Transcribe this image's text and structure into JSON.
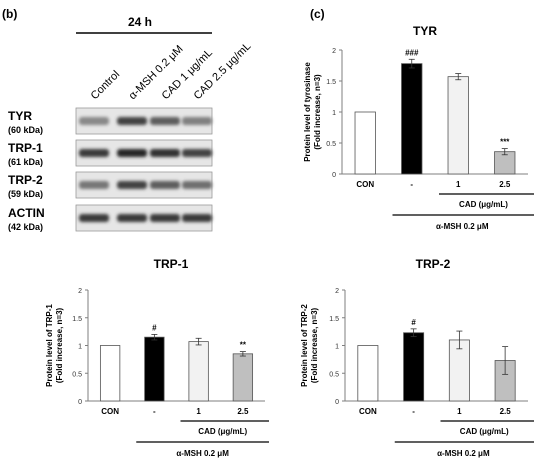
{
  "panels": {
    "b": "(b)",
    "c": "(c)"
  },
  "blot": {
    "time_label": "24 h",
    "lanes": [
      "Control",
      "α-MSH 0.2 μM",
      "CAD 1 μg/mL",
      "CAD 2.5 μg/mL"
    ],
    "rows": [
      {
        "name": "TYR",
        "mw": "(60 kDa)",
        "intensity": [
          0.45,
          0.85,
          0.7,
          0.5
        ]
      },
      {
        "name": "TRP-1",
        "mw": "(61 kDa)",
        "intensity": [
          0.9,
          1.0,
          0.95,
          0.85
        ]
      },
      {
        "name": "TRP-2",
        "mw": "(59 kDa)",
        "intensity": [
          0.55,
          0.85,
          0.7,
          0.6
        ]
      },
      {
        "name": "ACTIN",
        "mw": "(42 kDa)",
        "intensity": [
          0.9,
          0.9,
          0.9,
          0.9
        ]
      }
    ]
  },
  "chart_data": [
    {
      "type": "bar",
      "title": "TYR",
      "ylabel_line1": "Protein level of tyrosinase",
      "ylabel_line2": "(Fold increase, n=3)",
      "ylim": [
        0,
        2
      ],
      "yticks": [
        "0",
        "0.5",
        "1",
        "1.5",
        "2"
      ],
      "categories": [
        "CON",
        "-",
        "1",
        "2.5"
      ],
      "values": [
        1.0,
        1.78,
        1.57,
        0.36
      ],
      "errors": [
        0.0,
        0.07,
        0.05,
        0.05
      ],
      "bar_colors": [
        "#ffffff",
        "#000000",
        "#f2f2f2",
        "#bfbfbf"
      ],
      "significance": [
        "",
        "###",
        "",
        "***"
      ],
      "cad_label": "CAD (μg/mL)",
      "msh_label": "α-MSH 0.2 μM"
    },
    {
      "type": "bar",
      "title": "TRP-1",
      "ylabel_line1": "Protein level of TRP-1",
      "ylabel_line2": "(Fold increase, n=3)",
      "ylim": [
        0,
        2
      ],
      "yticks": [
        "0",
        "0.5",
        "1",
        "1.5",
        "2"
      ],
      "categories": [
        "CON",
        "-",
        "1",
        "2.5"
      ],
      "values": [
        1.0,
        1.15,
        1.07,
        0.85
      ],
      "errors": [
        0.0,
        0.05,
        0.06,
        0.04
      ],
      "bar_colors": [
        "#ffffff",
        "#000000",
        "#f2f2f2",
        "#bfbfbf"
      ],
      "significance": [
        "",
        "#",
        "",
        "**"
      ],
      "cad_label": "CAD (μg/mL)",
      "msh_label": "α-MSH 0.2 μM"
    },
    {
      "type": "bar",
      "title": "TRP-2",
      "ylabel_line1": "Protein level of TRP-2",
      "ylabel_line2": "(Fold increase, n=3)",
      "ylim": [
        0,
        2
      ],
      "yticks": [
        "0",
        "0.5",
        "1",
        "1.5",
        "2"
      ],
      "categories": [
        "CON",
        "-",
        "1",
        "2.5"
      ],
      "values": [
        1.0,
        1.23,
        1.1,
        0.73
      ],
      "errors": [
        0.0,
        0.07,
        0.16,
        0.25
      ],
      "bar_colors": [
        "#ffffff",
        "#000000",
        "#f2f2f2",
        "#bfbfbf"
      ],
      "significance": [
        "",
        "#",
        "",
        ""
      ],
      "cad_label": "CAD (μg/mL)",
      "msh_label": "α-MSH 0.2 μM"
    }
  ]
}
